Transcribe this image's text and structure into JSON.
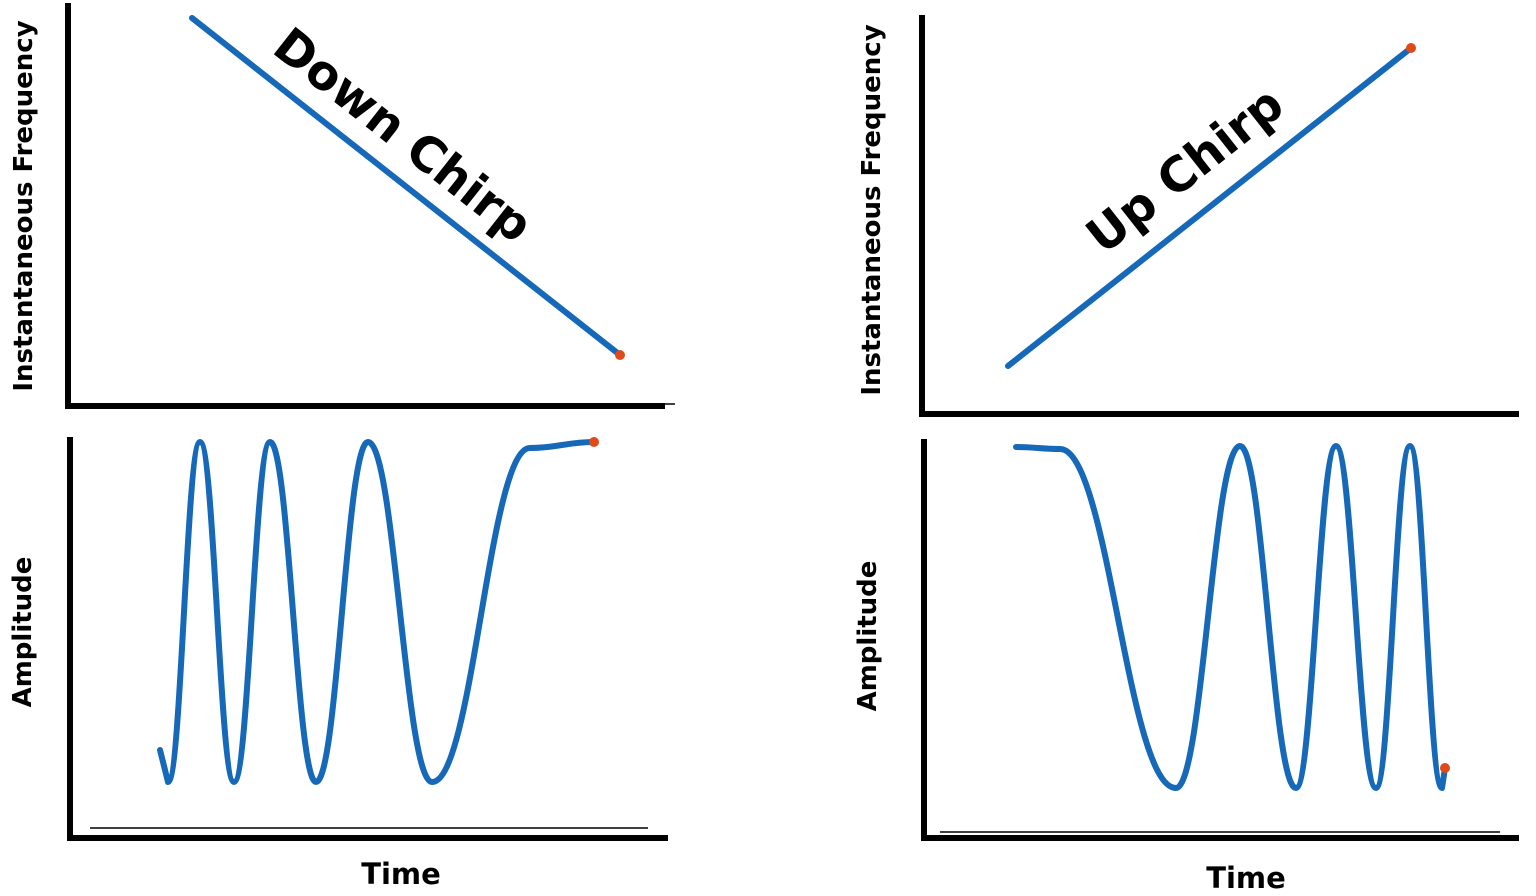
{
  "colors": {
    "curve": "#1668b8",
    "endpoint": "#e04a1a",
    "axis": "#000000"
  },
  "panels": {
    "down_frequency": {
      "ylabel": "Instantaneous Frequency",
      "label": "Down Chirp"
    },
    "down_amplitude": {
      "ylabel": "Amplitude",
      "xlabel": "Time"
    },
    "up_frequency": {
      "ylabel": "Instantaneous Frequency",
      "label": "Up Chirp"
    },
    "up_amplitude": {
      "ylabel": "Amplitude",
      "xlabel": "Time"
    }
  }
}
